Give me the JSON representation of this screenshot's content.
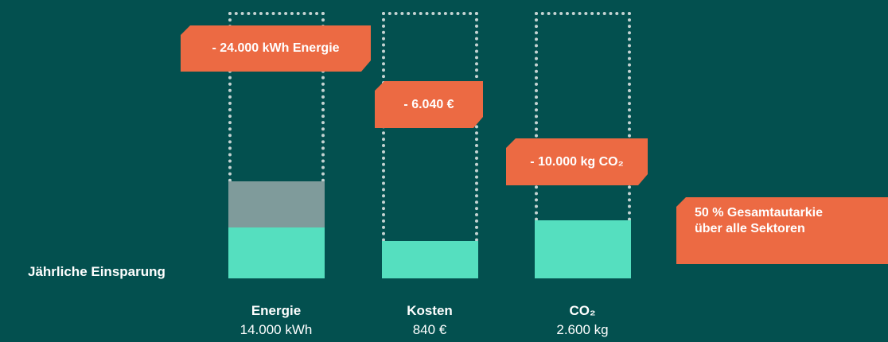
{
  "label": "Jährliche Einsparung",
  "columns": [
    {
      "name": "Energie",
      "amount": "14.000 kWh",
      "saving": "- 24.000 kWh Energie"
    },
    {
      "name": "Kosten",
      "amount": "840 €",
      "saving": "- 6.040 €"
    },
    {
      "name": "CO₂",
      "amount": "2.600 kg",
      "saving": "- 10.000 kg CO₂"
    }
  ],
  "note_lines": [
    "50 % Gesamtautarkie",
    "über alle Sektoren"
  ]
}
